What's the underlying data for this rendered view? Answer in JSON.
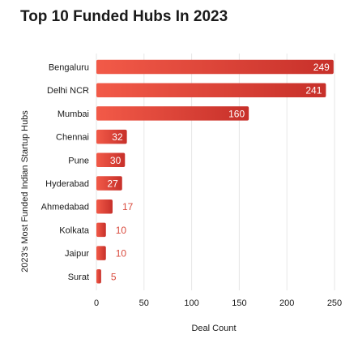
{
  "colors": {
    "bar_start": "#f25a48",
    "bar_end": "#c7302a",
    "outside_label": "#d94a3d",
    "grid": "#e6e6e6"
  },
  "chart_data": {
    "type": "bar",
    "orientation": "horizontal",
    "title": "Top 10 Funded Hubs In 2023",
    "xlabel": "Deal Count",
    "ylabel": "2023's Most Funded Indian Startup Hubs",
    "categories": [
      "Bengaluru",
      "Delhi NCR",
      "Mumbai",
      "Chennai",
      "Pune",
      "Hyderabad",
      "Ahmedabad",
      "Kolkata",
      "Jaipur",
      "Surat"
    ],
    "values": [
      249,
      241,
      160,
      32,
      30,
      27,
      17,
      10,
      10,
      5
    ],
    "xlim": [
      0,
      250
    ],
    "xticks": [
      0,
      50,
      100,
      150,
      200,
      250
    ],
    "grid": "vertical",
    "legend": "none"
  }
}
